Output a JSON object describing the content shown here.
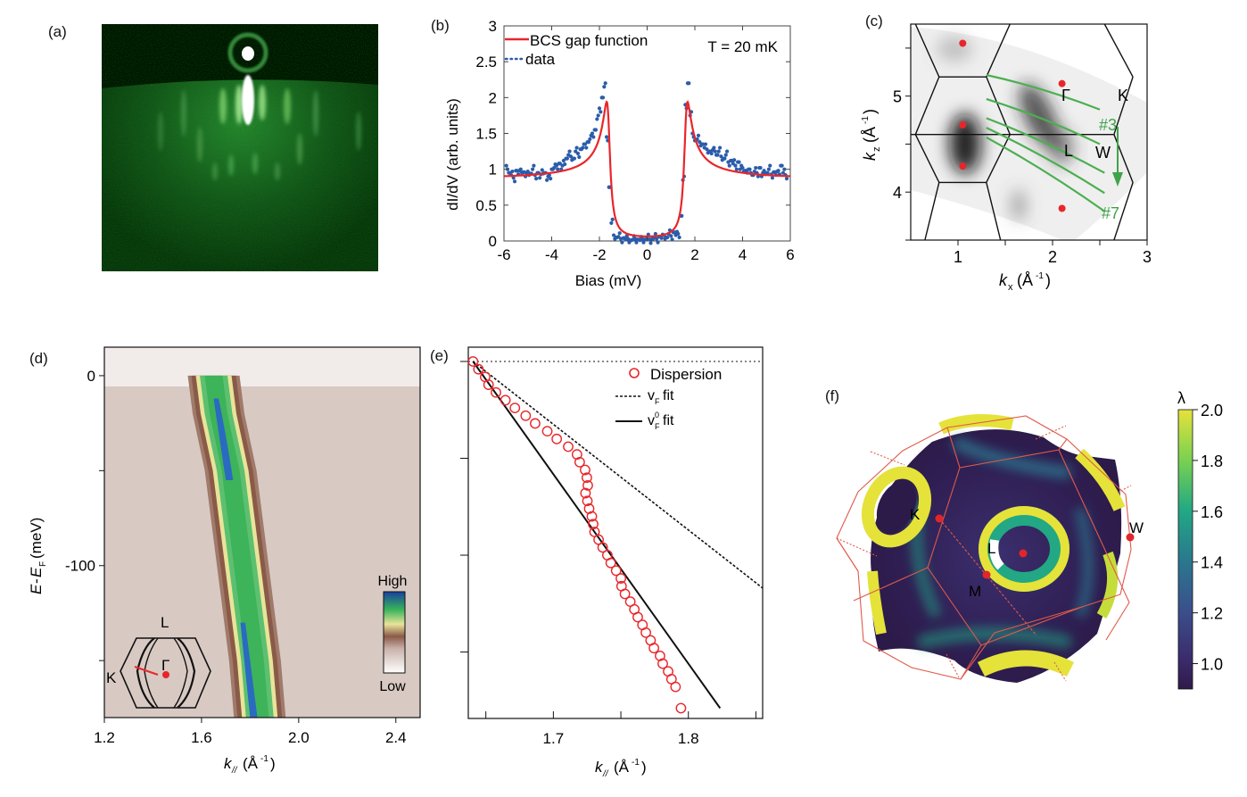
{
  "figure": {
    "panel_labels": [
      "(a)",
      "(b)",
      "(c)",
      "(d)",
      "(e)",
      "(f)"
    ]
  },
  "chart_data": [
    {
      "id": "a",
      "type": "image",
      "description": "RHEED diffraction pattern (green streaks on black)"
    },
    {
      "id": "b",
      "type": "line",
      "title": "",
      "xlabel": "Bias (mV)",
      "ylabel": "dI/dV (arb. units)",
      "xlim": [
        -6,
        6
      ],
      "ylim": [
        0,
        3
      ],
      "xticks": [
        "-6",
        "-4",
        "-2",
        "0",
        "2",
        "4",
        "6"
      ],
      "yticks": [
        "0",
        "0.5",
        "1",
        "1.5",
        "2",
        "2.5",
        "3"
      ],
      "annotation": "T = 20 mK",
      "legend_position": "top-left",
      "series": [
        {
          "name": "BCS gap function",
          "style": "line",
          "color": "#e8262a",
          "model": {
            "gap_mV": 1.62,
            "broadening_mV": 0.12,
            "background": 0.87
          }
        },
        {
          "name": "data",
          "style": "dots",
          "color": "#2a5caa",
          "x": [
            -5.9,
            -5.8,
            -5.7,
            -5.6,
            -5.5,
            -5.4,
            -5.3,
            -5.2,
            -5.1,
            -5.0,
            -4.9,
            -4.8,
            -4.7,
            -4.6,
            -4.5,
            -4.4,
            -4.3,
            -4.2,
            -4.1,
            -4.0,
            -3.9,
            -3.8,
            -3.7,
            -3.6,
            -3.5,
            -3.4,
            -3.3,
            -3.2,
            -3.1,
            -3.0,
            -2.9,
            -2.8,
            -2.7,
            -2.6,
            -2.5,
            -2.4,
            -2.3,
            -2.2,
            -2.1,
            -2.0,
            -1.9,
            -1.8,
            -1.7,
            -1.6,
            -1.5,
            -1.4,
            -1.3,
            -1.2,
            -1.1,
            -1.0,
            -0.9,
            -0.8,
            -0.7,
            -0.6,
            -0.5,
            -0.4,
            -0.3,
            -0.2,
            -0.1,
            0.0,
            0.1,
            0.2,
            0.3,
            0.4,
            0.5,
            0.6,
            0.7,
            0.8,
            0.9,
            1.0,
            1.1,
            1.2,
            1.3,
            1.4,
            1.5,
            1.6,
            1.7,
            1.8,
            1.9,
            2.0,
            2.1,
            2.2,
            2.3,
            2.4,
            2.5,
            2.6,
            2.7,
            2.8,
            2.9,
            3.0,
            3.1,
            3.2,
            3.3,
            3.4,
            3.5,
            3.6,
            3.7,
            3.8,
            3.9,
            4.0,
            4.1,
            4.2,
            4.3,
            4.4,
            4.5,
            4.6,
            4.7,
            4.8,
            4.9,
            5.0,
            5.1,
            5.2,
            5.3,
            5.4,
            5.5,
            5.6,
            5.7,
            5.8
          ],
          "y": [
            1.05,
            0.95,
            0.92,
            0.88,
            0.98,
            0.93,
            1.0,
            0.96,
            0.9,
            0.97,
            0.94,
            1.0,
            0.92,
            0.95,
            0.88,
            0.99,
            0.95,
            0.85,
            0.92,
            1.0,
            1.02,
            1.05,
            1.08,
            1.0,
            1.12,
            1.15,
            1.2,
            1.18,
            1.15,
            1.25,
            1.22,
            1.28,
            1.3,
            1.35,
            1.38,
            1.42,
            1.5,
            1.55,
            1.7,
            1.85,
            2.0,
            2.15,
            1.45,
            0.75,
            0.25,
            0.08,
            0.05,
            0.06,
            0.03,
            0.04,
            0.02,
            0.03,
            0.01,
            0.02,
            0.03,
            0.02,
            0.01,
            0.03,
            0.02,
            0.04,
            0.02,
            0.03,
            0.05,
            0.03,
            0.06,
            0.04,
            0.08,
            0.05,
            0.1,
            0.07,
            0.12,
            0.08,
            0.1,
            0.35,
            0.85,
            1.9,
            2.2,
            1.75,
            1.5,
            1.4,
            1.42,
            1.38,
            1.35,
            1.3,
            1.28,
            1.25,
            1.22,
            1.3,
            1.2,
            1.25,
            1.18,
            1.15,
            1.2,
            1.1,
            1.12,
            1.08,
            1.05,
            1.1,
            1.0,
            1.02,
            0.98,
            0.95,
            1.0,
            0.92,
            0.97,
            0.95,
            1.02,
            0.9,
            0.98,
            0.95,
            1.0,
            0.93,
            0.96,
            0.92,
            0.98,
            1.05,
            0.95,
            0.92
          ]
        }
      ]
    },
    {
      "id": "c",
      "type": "heatmap",
      "xlabel": "k_x (Å^-1)",
      "ylabel": "k_z (Å^-1)",
      "xlim": [
        0.5,
        3.0
      ],
      "ylim": [
        3.5,
        5.75
      ],
      "xticks": [
        "1",
        "2",
        "3"
      ],
      "yticks": [
        "4",
        "5"
      ],
      "points": [
        {
          "label": "",
          "kx": 1.05,
          "kz": 5.55
        },
        {
          "label": "Γ",
          "kx": 2.1,
          "kz": 5.13
        },
        {
          "label": "",
          "kx": 1.05,
          "kz": 4.7
        },
        {
          "label": "",
          "kx": 1.05,
          "kz": 4.27
        },
        {
          "label": "",
          "kx": 2.1,
          "kz": 3.83
        }
      ],
      "point_labels": [
        "Γ",
        "K",
        "L",
        "W"
      ],
      "cut_labels": [
        "#3",
        "#7"
      ],
      "cut_color": "#4caf50",
      "cuts_count": 5
    },
    {
      "id": "d",
      "type": "heatmap",
      "xlabel": "k_// (Å^-1)",
      "ylabel": "E-E_F (meV)",
      "xlim": [
        1.2,
        2.5
      ],
      "ylim": [
        -180,
        15
      ],
      "xticks": [
        "1.2",
        "1.6",
        "2.0",
        "2.4"
      ],
      "yticks": [
        "0",
        "-100"
      ],
      "colorbar": {
        "high_label": "High",
        "low_label": "Low"
      },
      "inset_labels": [
        "L",
        "Γ",
        "K"
      ],
      "band": {
        "E": [
          0,
          -20,
          -50,
          -100,
          -150,
          -180
        ],
        "k_center": [
          1.65,
          1.67,
          1.72,
          1.77,
          1.82,
          1.84
        ]
      }
    },
    {
      "id": "e",
      "type": "line",
      "xlabel": "k_// (Å^-1)",
      "ylabel": "",
      "xlim": [
        1.637,
        1.855
      ],
      "ylim": [
        -182,
        0
      ],
      "xticks": [
        "1.7",
        "1.8"
      ],
      "minor_xticks": [
        1.65,
        1.75,
        1.85
      ],
      "yticks_values": [
        0,
        -50,
        -100,
        -150
      ],
      "legend_position": "top-right",
      "series": [
        {
          "name": "Dispersion",
          "style": "open-circles",
          "color": "#e8262a",
          "x": [
            1.6405,
            1.6445,
            1.6495,
            1.652,
            1.6575,
            1.6645,
            1.6715,
            1.6795,
            1.6865,
            1.6955,
            1.7025,
            1.711,
            1.7175,
            1.7195,
            1.7235,
            1.7248,
            1.7255,
            1.7238,
            1.7252,
            1.7265,
            1.7285,
            1.7295,
            1.7305,
            1.7335,
            1.7365,
            1.74,
            1.7425,
            1.7465,
            1.75,
            1.7505,
            1.753,
            1.757,
            1.76,
            1.7625,
            1.766,
            1.7685,
            1.772,
            1.7745,
            1.779,
            1.781,
            1.785,
            1.7875,
            1.7905,
            1.7945
          ],
          "y": [
            0,
            -4,
            -8,
            -12,
            -16,
            -20,
            -24,
            -28,
            -32,
            -36,
            -40,
            -44,
            -48,
            -52,
            -56,
            -60,
            -64,
            -68,
            -72,
            -76,
            -80,
            -84,
            -88,
            -92,
            -96,
            -100,
            -104,
            -108,
            -112,
            -116,
            -120,
            -124,
            -128,
            -132,
            -136,
            -140,
            -144,
            -148,
            -152,
            -156,
            -160,
            -164,
            -168,
            -179
          ]
        },
        {
          "name": "v_F fit",
          "style": "dashed",
          "color": "#111111",
          "x": [
            1.6405,
            1.855
          ],
          "y": [
            0,
            -117
          ]
        },
        {
          "name": "v^0_F fit",
          "style": "solid",
          "color": "#111111",
          "x": [
            1.6405,
            1.8235
          ],
          "y": [
            0,
            -179
          ]
        },
        {
          "name": "E_F",
          "style": "dotted",
          "color": "#111111",
          "x": [
            1.637,
            1.855
          ],
          "y": [
            0,
            0
          ]
        }
      ],
      "legend": [
        "Dispersion",
        "v_F fit",
        "v^0_F fit"
      ]
    },
    {
      "id": "f",
      "type": "3d-surface",
      "description": "Fermi surface inside the fcc Brillouin zone colored by electron-phonon coupling λ",
      "point_labels": [
        "K",
        "L",
        "M",
        "W"
      ],
      "colorbar": {
        "label": "λ",
        "range": [
          0.9,
          2.0
        ],
        "ticks": [
          "1.0",
          "1.2",
          "1.4",
          "1.6",
          "1.8",
          "2.0"
        ],
        "colormap": "viridis"
      }
    }
  ]
}
